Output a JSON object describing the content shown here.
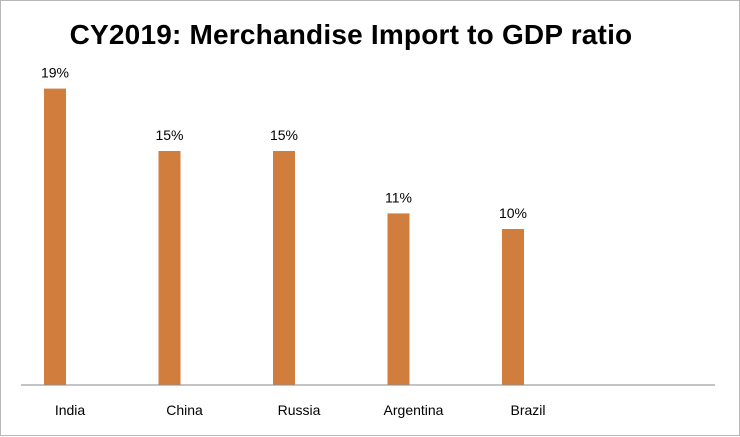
{
  "chart_data": {
    "type": "bar",
    "title": "CY2019: Merchandise Import to GDP ratio",
    "xlabel": "",
    "ylabel": "",
    "categories": [
      "India",
      "China",
      "Russia",
      "Argentina",
      "Brazil"
    ],
    "values": [
      19,
      15,
      15,
      11,
      10
    ],
    "value_labels": [
      "19%",
      "15%",
      "15%",
      "11%",
      "10%"
    ],
    "unit": "%",
    "ylim": [
      0,
      20
    ],
    "grid": false,
    "legend": "none",
    "bar_color": "#d17d3e",
    "axis_color": "#8a8a8a"
  }
}
